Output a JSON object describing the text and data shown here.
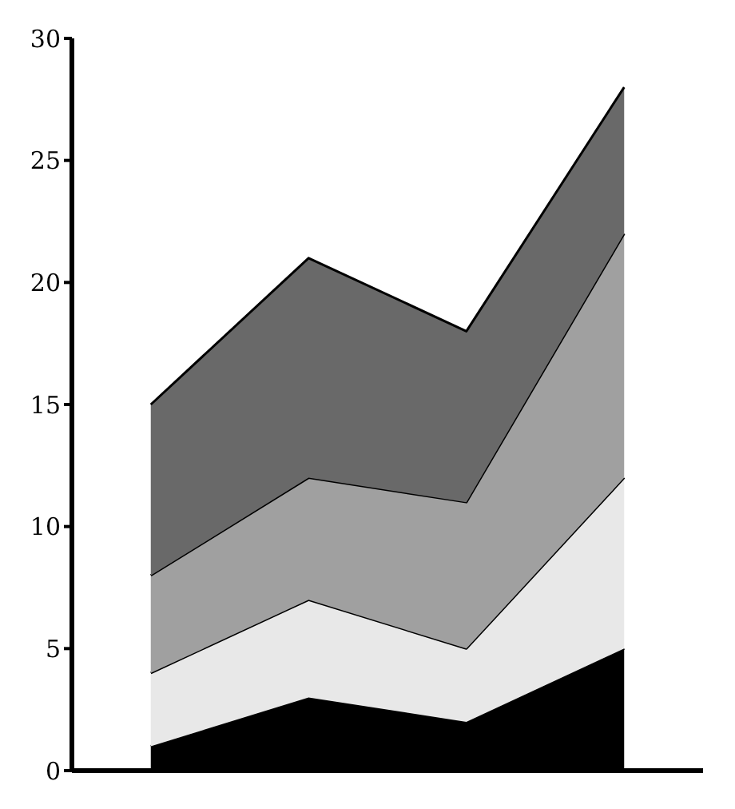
{
  "chart_data": {
    "type": "area",
    "stacked": true,
    "categories": [
      null,
      null,
      null,
      null
    ],
    "series": [
      {
        "color": "#000000",
        "values": [
          1,
          3,
          2,
          5
        ]
      },
      {
        "color": "#e8e8e8",
        "values": [
          3,
          4,
          3,
          7
        ]
      },
      {
        "color": "#a0a0a0",
        "values": [
          4,
          5,
          6,
          10
        ]
      },
      {
        "color": "#696969",
        "values": [
          7,
          9,
          7,
          6
        ]
      }
    ],
    "ylim": [
      0,
      30
    ],
    "yticks": [
      0,
      5,
      10,
      15,
      20,
      25,
      30
    ],
    "grid": false,
    "legend": false,
    "tick_labels": "y"
  }
}
